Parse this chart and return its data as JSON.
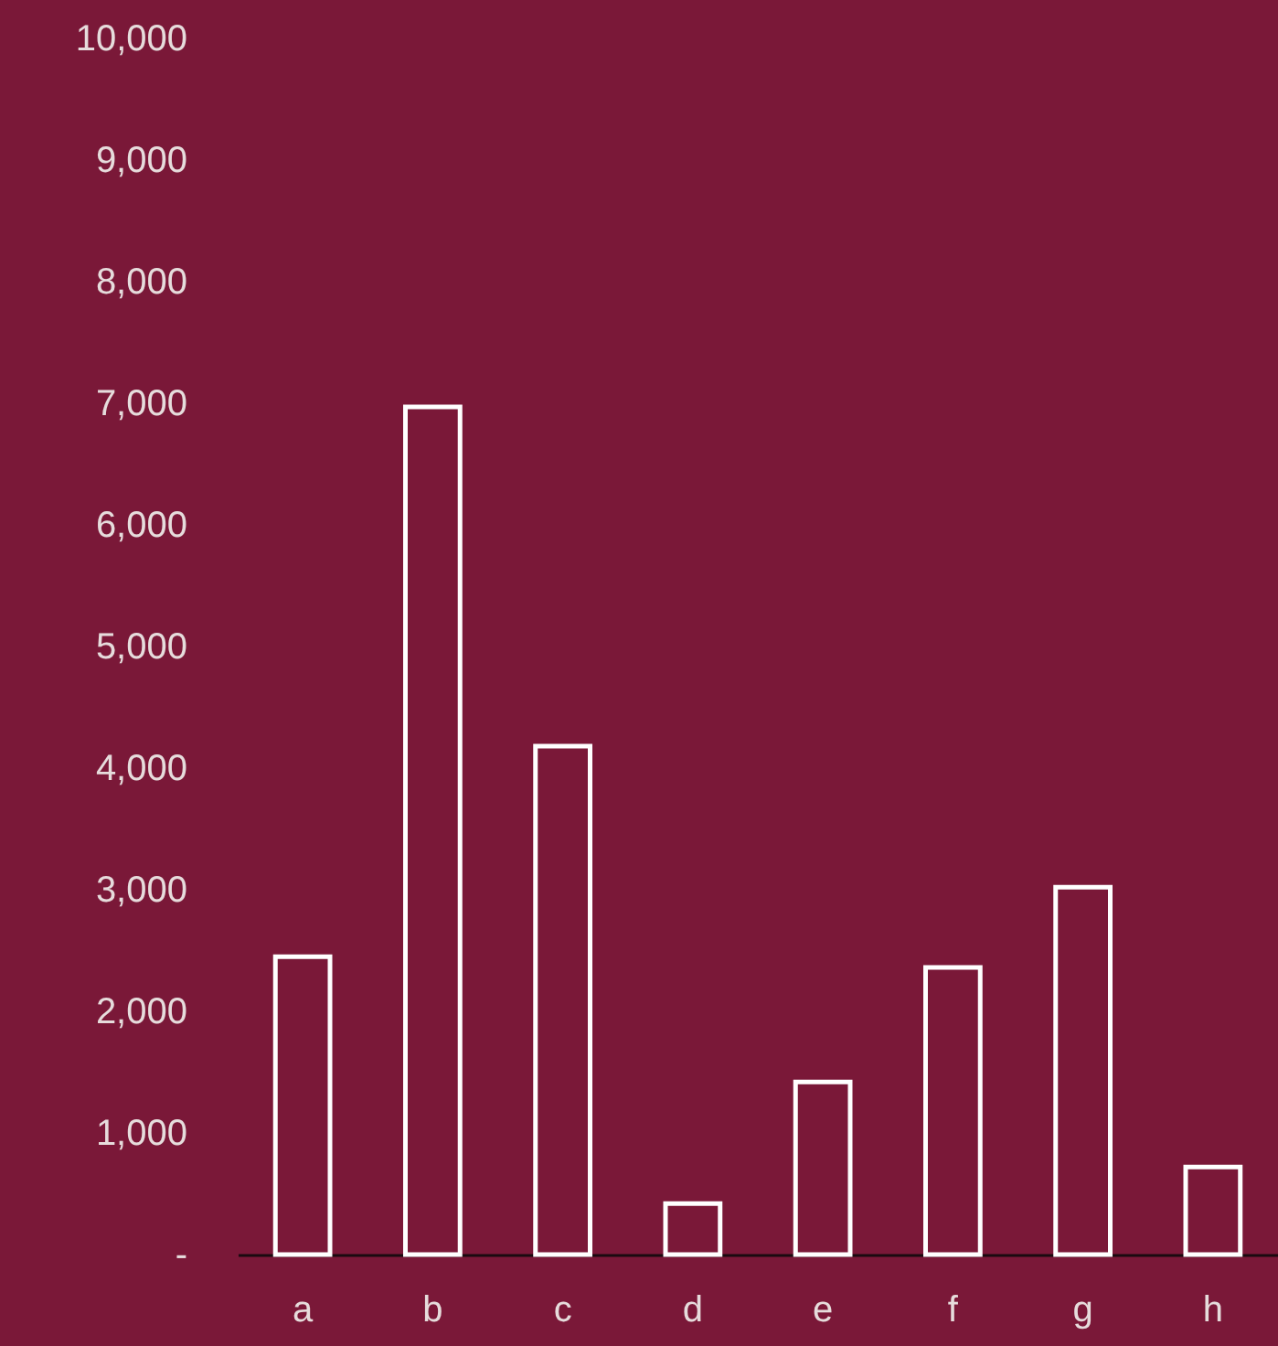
{
  "chart_data": {
    "type": "bar",
    "categories": [
      "a",
      "b",
      "c",
      "d",
      "e",
      "f",
      "g",
      "h"
    ],
    "values": [
      2450,
      6970,
      4180,
      420,
      1420,
      2360,
      3020,
      720
    ],
    "color": "#ffffff",
    "ylim": [
      0,
      10000
    ],
    "yticks": [
      {
        "value": 0,
        "label": "-"
      },
      {
        "value": 1000,
        "label": "1,000"
      },
      {
        "value": 2000,
        "label": "2,000"
      },
      {
        "value": 3000,
        "label": "3,000"
      },
      {
        "value": 4000,
        "label": "4,000"
      },
      {
        "value": 5000,
        "label": "5,000"
      },
      {
        "value": 6000,
        "label": "6,000"
      },
      {
        "value": 7000,
        "label": "7,000"
      },
      {
        "value": 8000,
        "label": "8,000"
      },
      {
        "value": 9000,
        "label": "9,000"
      },
      {
        "value": 10000,
        "label": "10,000"
      }
    ],
    "grid": false
  }
}
